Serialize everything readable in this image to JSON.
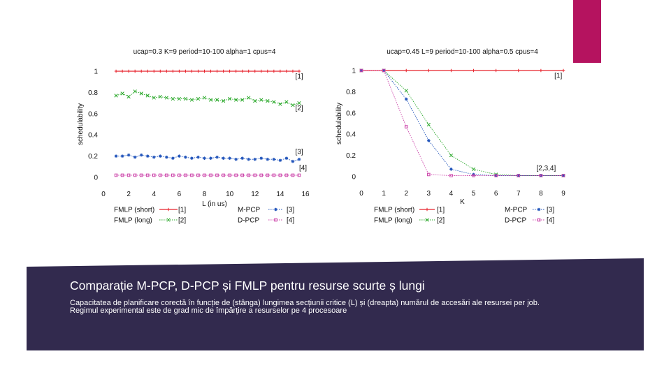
{
  "slide": {
    "accent_color": "#b5135f",
    "banner_color": "#322a4e",
    "title": "Comparație M-PCP, D-PCP și FMLP pentru resurse scurte ș lungi",
    "caption": "Capacitatea de planificare corectă în funcție de (stânga) lungimea secțiunii critice (L) și (dreapta) numărul de accesări ale resursei per job. Regimul experimental este de grad mic de împărțire a resurselor pe 4 procesoare"
  },
  "chart_data": [
    {
      "type": "line",
      "title": "ucap=0.3 K=9 period=10-100 alpha=1 cpus=4",
      "xlabel": "L (in us)",
      "ylabel": "schedulability",
      "xlim": [
        0,
        16
      ],
      "ylim": [
        0,
        1.05
      ],
      "xticks": [
        0,
        2,
        4,
        6,
        8,
        10,
        12,
        14,
        16
      ],
      "yticks": [
        0,
        0.2,
        0.4,
        0.6,
        0.8,
        1
      ],
      "ytick_labels": [
        "0",
        "0.2",
        "0.4",
        "0.6",
        "0.8",
        "1"
      ],
      "grid": false,
      "legend_position": "bottom",
      "x": [
        1,
        1.5,
        2,
        2.5,
        3,
        3.5,
        4,
        4.5,
        5,
        5.5,
        6,
        6.5,
        7,
        7.5,
        8,
        8.5,
        9,
        9.5,
        10,
        10.5,
        11,
        11.5,
        12,
        12.5,
        13,
        13.5,
        14,
        14.5,
        15,
        15.5
      ],
      "series": [
        {
          "name": "FMLP (short)",
          "ref": "[1]",
          "color": "#e8202a",
          "style": "solid",
          "marker": "plus",
          "values": [
            1,
            1,
            1,
            1,
            1,
            1,
            1,
            1,
            1,
            1,
            1,
            1,
            1,
            1,
            1,
            1,
            1,
            1,
            1,
            1,
            1,
            1,
            1,
            1,
            1,
            1,
            1,
            1,
            1,
            1
          ]
        },
        {
          "name": "FMLP (long)",
          "ref": "[2]",
          "color": "#2aa82a",
          "style": "dotted",
          "marker": "x",
          "values": [
            0.77,
            0.79,
            0.76,
            0.81,
            0.79,
            0.77,
            0.75,
            0.76,
            0.75,
            0.74,
            0.74,
            0.74,
            0.73,
            0.74,
            0.75,
            0.73,
            0.73,
            0.72,
            0.74,
            0.73,
            0.73,
            0.75,
            0.72,
            0.73,
            0.72,
            0.71,
            0.69,
            0.71,
            0.68,
            0.7
          ]
        },
        {
          "name": "M-PCP",
          "ref": "[3]",
          "color": "#2255bb",
          "style": "dotted",
          "marker": "asterisk",
          "values": [
            0.2,
            0.2,
            0.21,
            0.19,
            0.21,
            0.2,
            0.19,
            0.2,
            0.19,
            0.18,
            0.2,
            0.19,
            0.18,
            0.19,
            0.18,
            0.18,
            0.19,
            0.18,
            0.18,
            0.17,
            0.18,
            0.17,
            0.17,
            0.18,
            0.17,
            0.17,
            0.16,
            0.18,
            0.15,
            0.17
          ]
        },
        {
          "name": "D-PCP",
          "ref": "[4]",
          "color": "#cc44aa",
          "style": "dotted",
          "marker": "square",
          "values": [
            0.02,
            0.02,
            0.02,
            0.02,
            0.02,
            0.02,
            0.02,
            0.02,
            0.02,
            0.02,
            0.02,
            0.02,
            0.02,
            0.02,
            0.02,
            0.02,
            0.02,
            0.02,
            0.02,
            0.02,
            0.02,
            0.02,
            0.02,
            0.02,
            0.02,
            0.02,
            0.02,
            0.02,
            0.02,
            0.02
          ]
        }
      ],
      "annotations": [
        {
          "text": "[1]",
          "x": 15.2,
          "y": 0.93
        },
        {
          "text": "[2]",
          "x": 15.2,
          "y": 0.63
        },
        {
          "text": "[3]",
          "x": 15.2,
          "y": 0.22
        },
        {
          "text": "[4]",
          "x": 15.5,
          "y": 0.07
        }
      ]
    },
    {
      "type": "line",
      "title": "ucap=0.45 L=9 period=10-100 alpha=0.5 cpus=4",
      "xlabel": "K",
      "ylabel": "schedulability",
      "xlim": [
        0,
        9
      ],
      "ylim": [
        0,
        1.05
      ],
      "xticks": [
        0,
        1,
        2,
        3,
        4,
        5,
        6,
        7,
        8,
        9
      ],
      "yticks": [
        0,
        0.2,
        0.4,
        0.6,
        0.8,
        1
      ],
      "ytick_labels": [
        "0",
        "0.2",
        "0.4",
        "0.6",
        "0.8",
        "1"
      ],
      "grid": false,
      "legend_position": "bottom",
      "x": [
        0,
        1,
        2,
        3,
        4,
        5,
        6,
        7,
        8,
        9
      ],
      "series": [
        {
          "name": "FMLP (short)",
          "ref": "[1]",
          "color": "#e8202a",
          "style": "solid",
          "marker": "plus",
          "values": [
            1,
            1,
            1,
            1,
            1,
            1,
            1,
            1,
            1,
            1
          ]
        },
        {
          "name": "FMLP (long)",
          "ref": "[2]",
          "color": "#2aa82a",
          "style": "dotted",
          "marker": "x",
          "values": [
            1,
            1,
            0.81,
            0.49,
            0.2,
            0.07,
            0.02,
            0.01,
            0.01,
            0.01
          ]
        },
        {
          "name": "M-PCP",
          "ref": "[3]",
          "color": "#2255bb",
          "style": "dotted",
          "marker": "asterisk",
          "values": [
            1,
            1,
            0.73,
            0.34,
            0.07,
            0.02,
            0.01,
            0.01,
            0.01,
            0.01
          ]
        },
        {
          "name": "D-PCP",
          "ref": "[4]",
          "color": "#cc44aa",
          "style": "dotted",
          "marker": "square",
          "values": [
            1,
            1,
            0.47,
            0.02,
            0.01,
            0.01,
            0.01,
            0.01,
            0.01,
            0.01
          ]
        }
      ],
      "annotations": [
        {
          "text": "[1]",
          "x": 8.6,
          "y": 0.93
        },
        {
          "text": "[2,3,4]",
          "x": 7.8,
          "y": 0.06
        }
      ]
    }
  ]
}
